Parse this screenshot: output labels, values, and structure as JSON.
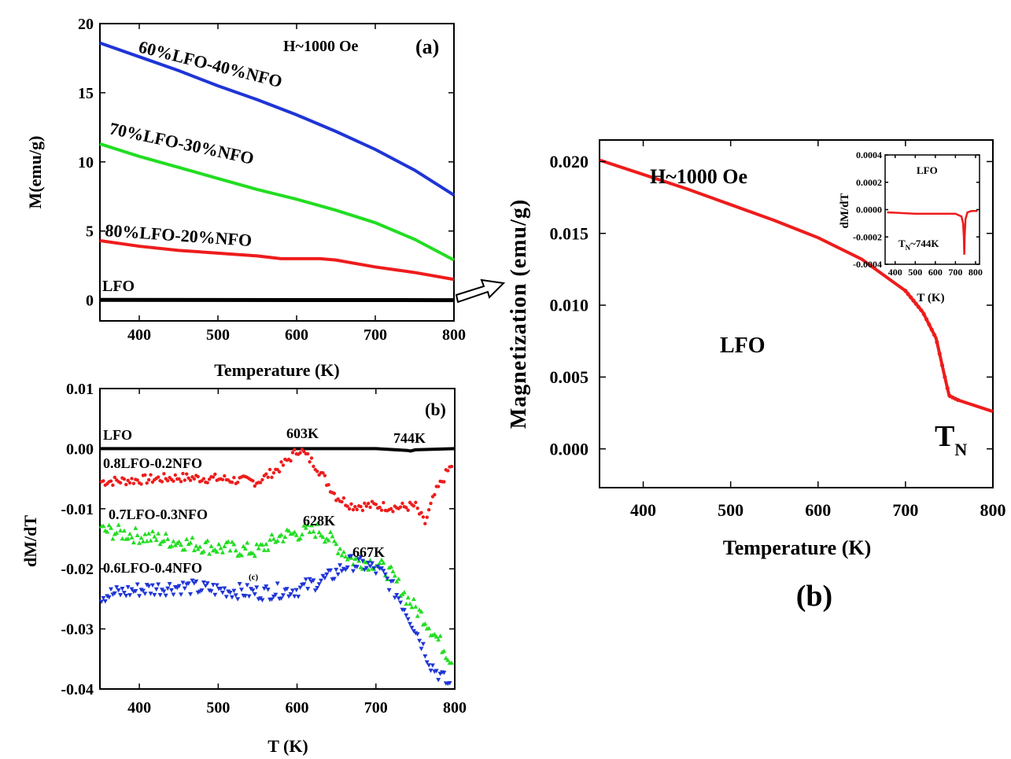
{
  "chart_data": [
    {
      "panel": "a",
      "type": "line",
      "panel_label": "(a)",
      "field_label": "H~1000 Oe",
      "xlabel": "Temperature (K)",
      "ylabel": "M(emu/g)",
      "xlim": [
        350,
        800
      ],
      "ylim": [
        -1.5,
        20
      ],
      "xticks": [
        400,
        500,
        600,
        700,
        800
      ],
      "yticks": [
        0,
        5,
        10,
        15,
        20
      ],
      "xtick_labels": [
        "400",
        "500",
        "600",
        "700",
        "800"
      ],
      "ytick_labels": [
        "0",
        "5",
        "10",
        "15",
        "20"
      ],
      "series": [
        {
          "name": "60%LFO-40%NFO",
          "color": "#1f35d6",
          "x": [
            350,
            400,
            450,
            500,
            550,
            600,
            650,
            700,
            750,
            800
          ],
          "y": [
            18.6,
            17.6,
            16.6,
            15.5,
            14.5,
            13.4,
            12.2,
            10.9,
            9.4,
            7.6
          ]
        },
        {
          "name": "70%LFO-30%NFO",
          "color": "#22dd22",
          "x": [
            350,
            400,
            450,
            500,
            550,
            600,
            650,
            700,
            750,
            800
          ],
          "y": [
            11.3,
            10.4,
            9.6,
            8.8,
            8.0,
            7.3,
            6.5,
            5.6,
            4.4,
            2.9
          ]
        },
        {
          "name": "80%LFO-20%NFO",
          "color": "#ee1c1c",
          "x": [
            350,
            400,
            450,
            500,
            550,
            580,
            600,
            630,
            650,
            700,
            750,
            800
          ],
          "y": [
            4.3,
            3.9,
            3.6,
            3.4,
            3.2,
            3.0,
            3.0,
            3.0,
            2.9,
            2.4,
            2.0,
            1.5
          ]
        },
        {
          "name": "LFO",
          "color": "#000000",
          "x": [
            350,
            800
          ],
          "y": [
            0.02,
            0.003
          ]
        }
      ]
    },
    {
      "panel": "b-left",
      "type": "scatter",
      "panel_label": "(b)",
      "xlabel": "T (K)",
      "ylabel": "dM/dT",
      "xlim": [
        350,
        800
      ],
      "ylim": [
        -0.04,
        0.01
      ],
      "xticks": [
        400,
        500,
        600,
        700,
        800
      ],
      "yticks": [
        0.01,
        0.0,
        -0.01,
        -0.02,
        -0.03,
        -0.04
      ],
      "xtick_labels": [
        "400",
        "500",
        "600",
        "700",
        "800"
      ],
      "ytick_labels": [
        "0.01",
        "0.00",
        "-0.01",
        "-0.02",
        "-0.03",
        "-0.04"
      ],
      "series": [
        {
          "name": "LFO",
          "color": "#000000",
          "x": [
            350,
            700,
            740,
            744,
            750,
            800
          ],
          "y": [
            0.0,
            0.0,
            -0.0003,
            -0.0004,
            -0.0002,
            0.0
          ]
        },
        {
          "name": "0.8LFO-0.2NFO",
          "color": "#ee1c1c",
          "x": [
            350,
            400,
            450,
            500,
            550,
            580,
            603,
            625,
            650,
            670,
            700,
            730,
            750,
            762,
            775,
            790,
            800
          ],
          "y": [
            -0.0055,
            -0.0052,
            -0.0048,
            -0.005,
            -0.0055,
            -0.003,
            0.0,
            -0.003,
            -0.008,
            -0.0095,
            -0.0095,
            -0.0098,
            -0.0095,
            -0.0125,
            -0.0075,
            -0.004,
            -0.002
          ]
        },
        {
          "name": "0.7LFO-0.3NFO",
          "color": "#22dd22",
          "x": [
            350,
            400,
            450,
            500,
            550,
            580,
            628,
            650,
            670,
            700,
            720,
            740,
            760,
            780,
            800
          ],
          "y": [
            -0.0135,
            -0.0145,
            -0.0155,
            -0.0165,
            -0.017,
            -0.0145,
            -0.0135,
            -0.016,
            -0.0185,
            -0.019,
            -0.021,
            -0.025,
            -0.028,
            -0.032,
            -0.036
          ]
        },
        {
          "name": "0.6LFO-0.4NFO",
          "color": "#1f35d6",
          "x": [
            350,
            400,
            450,
            500,
            550,
            600,
            640,
            667,
            690,
            710,
            730,
            750,
            770,
            790,
            800
          ],
          "y": [
            -0.0245,
            -0.0235,
            -0.023,
            -0.0235,
            -0.024,
            -0.0235,
            -0.0215,
            -0.019,
            -0.0195,
            -0.021,
            -0.025,
            -0.03,
            -0.036,
            -0.039,
            -0.04
          ]
        }
      ],
      "annotations": [
        "603K",
        "744K",
        "628K",
        "667K",
        "(c)"
      ]
    },
    {
      "panel": "b-right",
      "type": "line",
      "panel_label": "(b)",
      "field_label": "H~1000 Oe",
      "sample_label": "LFO",
      "tn_label": "T",
      "tn_sub": "N",
      "xlabel": "Temperature (K)",
      "ylabel": "Magnetization (emu/g)",
      "xlim": [
        350,
        800
      ],
      "ylim": [
        -0.0027,
        0.0215
      ],
      "xticks": [
        400,
        500,
        600,
        700,
        800
      ],
      "yticks": [
        0.0,
        0.005,
        0.01,
        0.015,
        0.02
      ],
      "xtick_labels": [
        "400",
        "500",
        "600",
        "700",
        "800"
      ],
      "ytick_labels": [
        "0.000",
        "0.005",
        "0.010",
        "0.015",
        "0.020"
      ],
      "series": [
        {
          "name": "LFO",
          "color": "#ee1c1c",
          "x": [
            350,
            400,
            450,
            500,
            550,
            600,
            650,
            700,
            720,
            735,
            745,
            750,
            760,
            800
          ],
          "y": [
            0.0201,
            0.0191,
            0.0181,
            0.017,
            0.0159,
            0.0147,
            0.0132,
            0.011,
            0.0095,
            0.0077,
            0.005,
            0.0037,
            0.0034,
            0.0026
          ]
        }
      ],
      "inset": {
        "type": "line",
        "sample_label": "LFO",
        "tn_label": "T",
        "tn_sub": "N",
        "tn_value": "~744K",
        "xlabel": "T (K)",
        "ylabel": "dM/dT",
        "xlim": [
          350,
          820
        ],
        "ylim": [
          -0.0004,
          0.0004
        ],
        "xticks": [
          400,
          500,
          600,
          700,
          800
        ],
        "yticks": [
          0.0004,
          0.0002,
          0.0,
          -0.0002,
          -0.0004
        ],
        "xtick_labels": [
          "400",
          "500",
          "600",
          "700",
          "800"
        ],
        "ytick_labels": [
          "0.0004",
          "0.0002",
          "0.0000",
          "-0.0002",
          "-0.0004"
        ],
        "series": [
          {
            "name": "LFO",
            "color": "#ee1c1c",
            "x": [
              360,
              500,
              700,
              730,
              738,
              742,
              744,
              746,
              750,
              760,
              780,
              810
            ],
            "y": [
              -2e-05,
              -3e-05,
              -3e-05,
              -5e-05,
              -0.0001,
              -0.0002,
              -0.00033,
              -0.0002,
              -7e-05,
              -2e-05,
              -1e-05,
              -1e-05
            ]
          }
        ]
      }
    }
  ]
}
